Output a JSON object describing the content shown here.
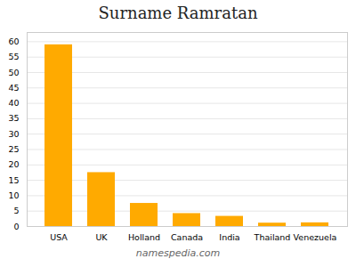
{
  "chart_data": {
    "type": "bar",
    "title": "Surname Ramratan",
    "caption": "namespedia.com",
    "categories": [
      "USA",
      "UK",
      "Holland",
      "Canada",
      "India",
      "Thailand",
      "Venezuela"
    ],
    "values": [
      59,
      17.5,
      7.5,
      4.2,
      3.3,
      1.1,
      1.2
    ],
    "color": "#FFAA00",
    "ylim": [
      0,
      63
    ],
    "yticks": [
      0,
      5,
      10,
      15,
      20,
      25,
      30,
      35,
      40,
      45,
      50,
      55,
      60
    ],
    "grid": true
  }
}
